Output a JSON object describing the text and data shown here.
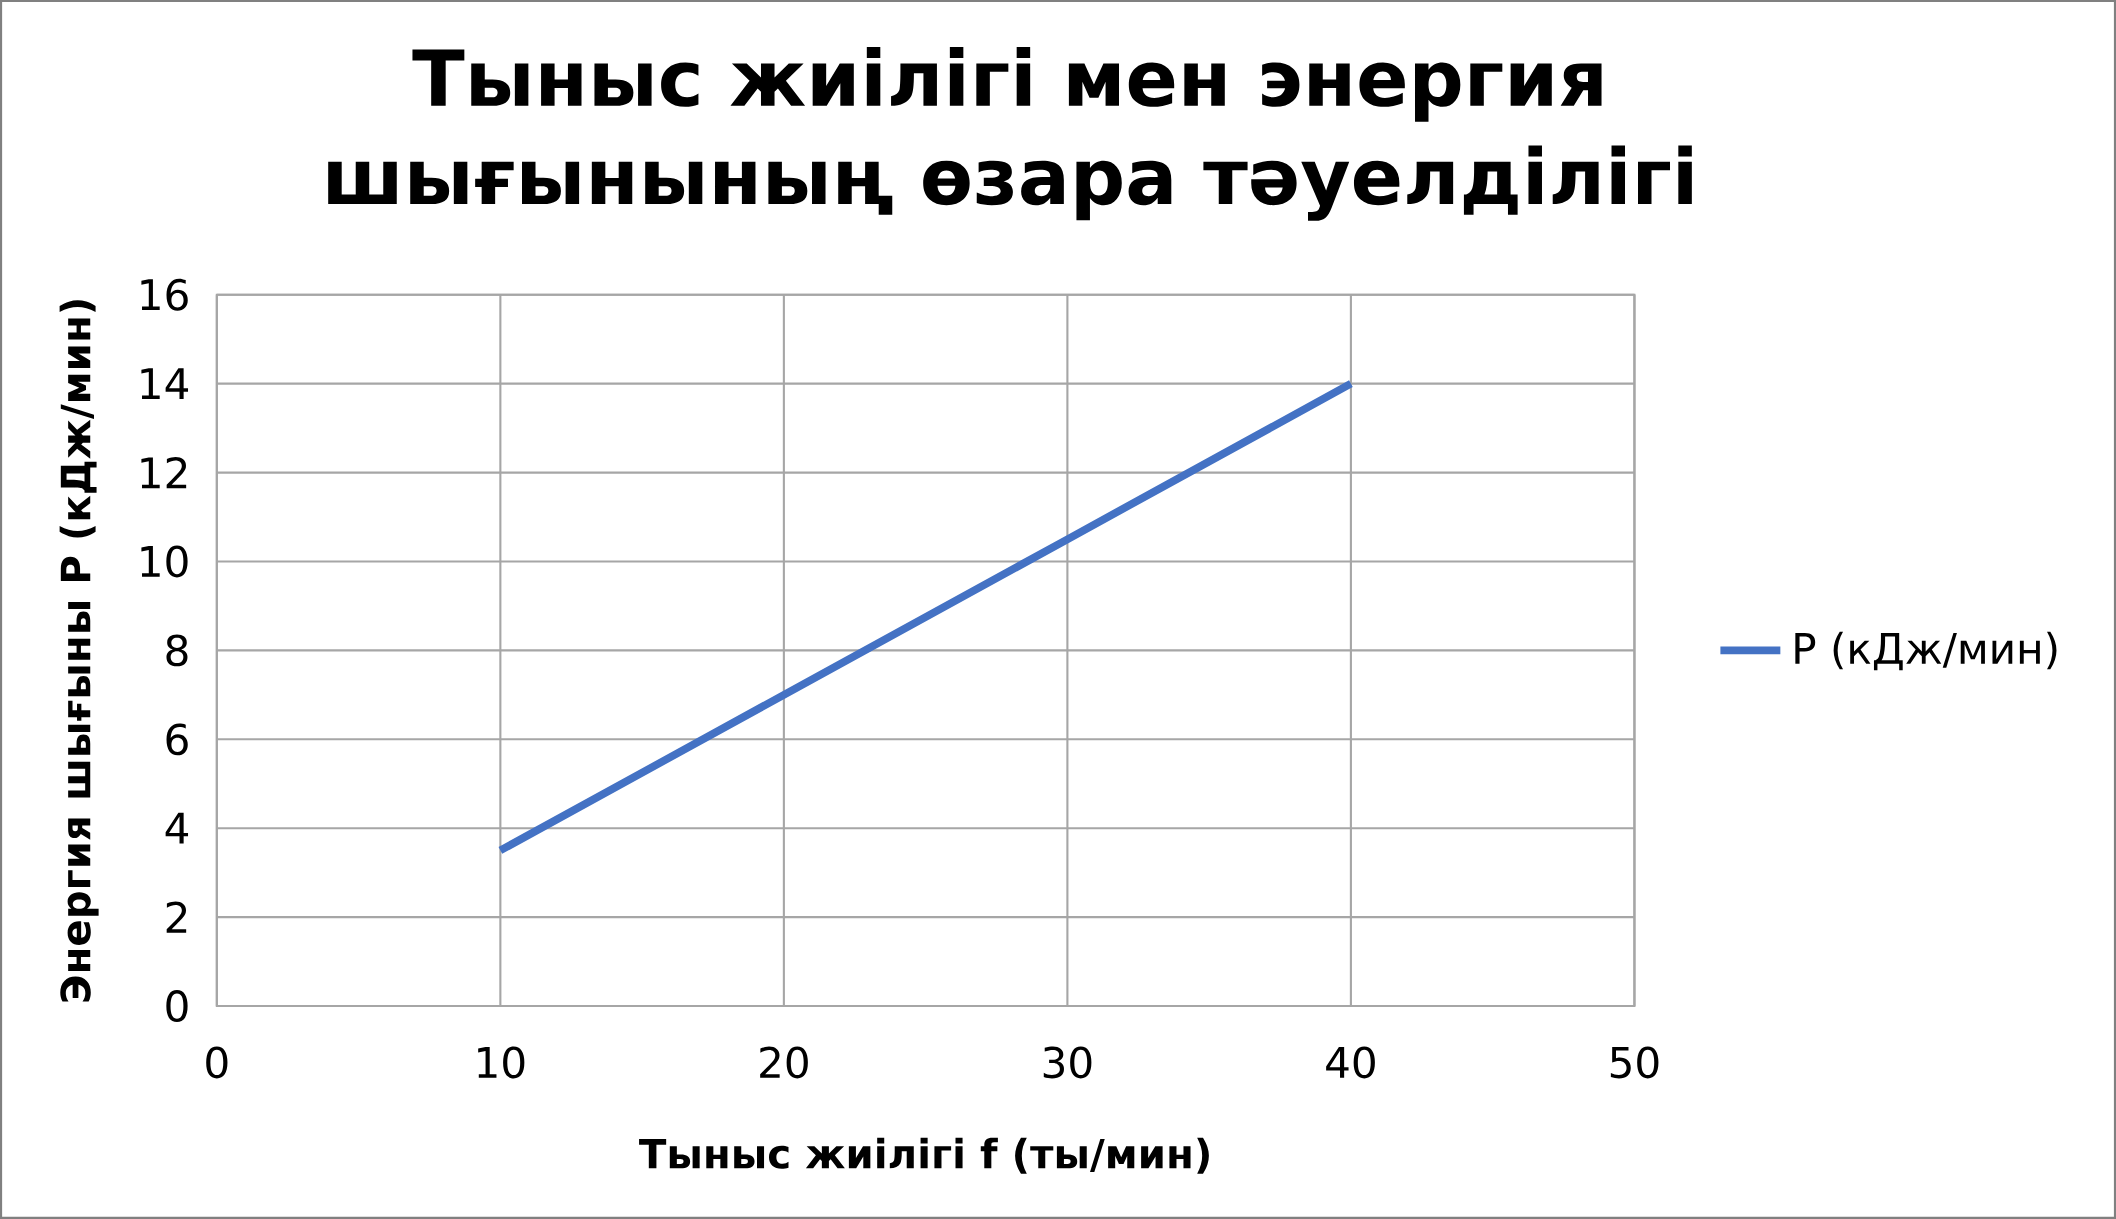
{
  "chart_data": {
    "type": "line",
    "title": "Тыныс жиілігі мен энергия шығынының өзара тәуелділігі",
    "xlabel": "Тыныс жиілігі f (ты/мин)",
    "ylabel": "Энергия шығыны P (кДж/мин)",
    "x": [
      10,
      20,
      30,
      40
    ],
    "series": [
      {
        "name": "P (кДж/мин)",
        "color": "#4472c4",
        "values": [
          3.5,
          7,
          10.5,
          14
        ]
      }
    ],
    "xlim": [
      0,
      50
    ],
    "xticks": [
      0,
      10,
      20,
      30,
      40,
      50
    ],
    "ylim": [
      0,
      16
    ],
    "yticks": [
      0,
      2,
      4,
      6,
      8,
      10,
      12,
      14,
      16
    ],
    "grid": true,
    "legend": "right",
    "marker": "none",
    "line_style": "solid"
  }
}
